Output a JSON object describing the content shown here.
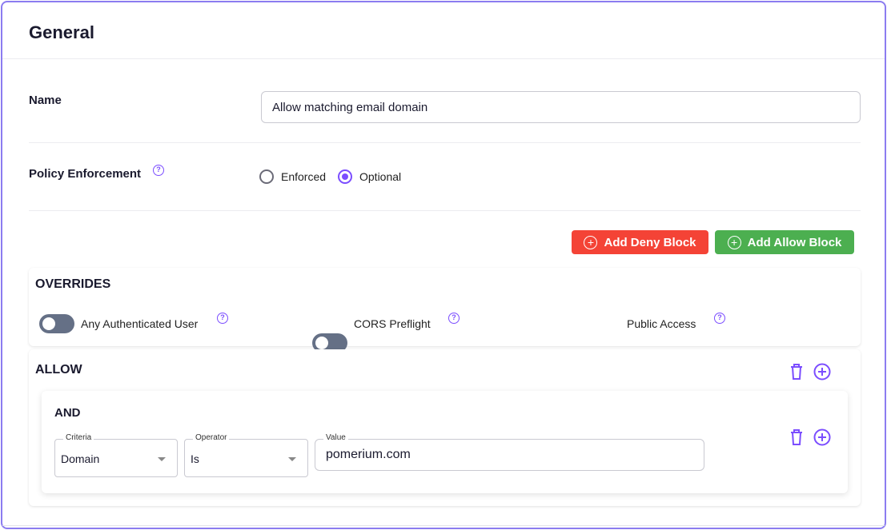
{
  "title": "General",
  "name": {
    "label": "Name",
    "value": "Allow matching email domain"
  },
  "enforcement": {
    "label": "Policy Enforcement",
    "help_icon": "question-circle-icon",
    "options": [
      {
        "label": "Enforced",
        "selected": false
      },
      {
        "label": "Optional",
        "selected": true
      }
    ]
  },
  "buttons": {
    "deny": "Add Deny Block",
    "allow": "Add Allow Block",
    "deny_color": "#f44336",
    "allow_color": "#4caf50"
  },
  "overrides": {
    "title": "OVERRIDES",
    "toggles": [
      {
        "label": "Any Authenticated User",
        "on": false
      },
      {
        "label": "CORS Preflight",
        "on": false
      },
      {
        "label": "Public Access",
        "on": false
      }
    ]
  },
  "allow": {
    "title": "ALLOW",
    "and": {
      "title": "AND",
      "criteria": {
        "label": "Criteria",
        "value": "Domain"
      },
      "operator": {
        "label": "Operator",
        "value": "Is"
      },
      "value": {
        "label": "Value",
        "value": "pomerium.com"
      }
    }
  },
  "accent": "#7b4dff"
}
